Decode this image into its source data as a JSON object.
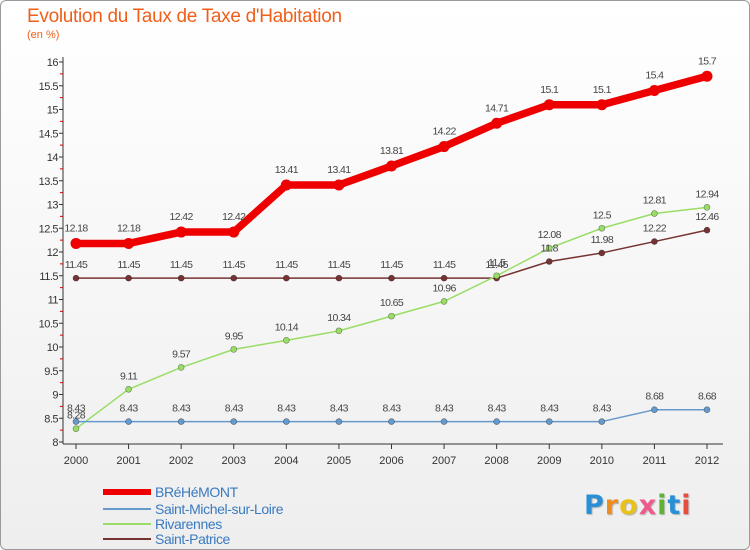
{
  "header": {
    "title": "Evolution du Taux de Taxe d'Habitation",
    "unit": "(en %)"
  },
  "logo": {
    "text": "Proxiti",
    "letters": [
      "P",
      "r",
      "o",
      "x",
      "i",
      "t",
      "i"
    ]
  },
  "chart_data": {
    "type": "line",
    "title": "Evolution du Taux de Taxe d'Habitation",
    "ylabel": "(en %)",
    "xlabel": "",
    "x": [
      "2000",
      "2001",
      "2002",
      "2003",
      "2004",
      "2005",
      "2006",
      "2007",
      "2008",
      "2009",
      "2010",
      "2011",
      "2012"
    ],
    "ylim": [
      8,
      16
    ],
    "yticks": [
      "8",
      "8.5",
      "9",
      "9.5",
      "10",
      "10.5",
      "11",
      "11.5",
      "12",
      "12.5",
      "13",
      "13.5",
      "14",
      "14.5",
      "15",
      "15.5",
      "16"
    ],
    "grid": false,
    "legend": "bottom-left",
    "series": [
      {
        "name": "BRéHéMONT",
        "color": "#ee0000",
        "values": [
          12.18,
          12.18,
          12.42,
          12.42,
          13.41,
          13.41,
          13.81,
          14.22,
          14.71,
          15.1,
          15.1,
          15.4,
          15.7
        ],
        "labels": [
          "12.18",
          "12.18",
          "12.42",
          "12.42",
          "13.41",
          "13.41",
          "13.81",
          "14.22",
          "14.71",
          "15.1",
          "15.1",
          "15.4",
          "15.7"
        ]
      },
      {
        "name": "Saint-Michel-sur-Loire",
        "color": "#6699cc",
        "values": [
          8.43,
          8.43,
          8.43,
          8.43,
          8.43,
          8.43,
          8.43,
          8.43,
          8.43,
          8.43,
          8.43,
          8.68,
          8.68
        ],
        "labels": [
          "8.43",
          "8.43",
          "8.43",
          "8.43",
          "8.43",
          "8.43",
          "8.43",
          "8.43",
          "8.43",
          "8.43",
          "8.43",
          "8.68",
          "8.68"
        ]
      },
      {
        "name": "Rivarennes",
        "color": "#99dd66",
        "values": [
          8.28,
          9.11,
          9.57,
          9.95,
          10.14,
          10.34,
          10.65,
          10.96,
          11.5,
          12.08,
          12.5,
          12.81,
          12.94
        ],
        "labels": [
          "8.28",
          "9.11",
          "9.57",
          "9.95",
          "10.14",
          "10.34",
          "10.65",
          "10.96",
          "11.5",
          "12.08",
          "12.5",
          "12.81",
          "12.94"
        ]
      },
      {
        "name": "Saint-Patrice",
        "color": "#773333",
        "values": [
          11.45,
          11.45,
          11.45,
          11.45,
          11.45,
          11.45,
          11.45,
          11.45,
          11.45,
          11.8,
          11.98,
          12.22,
          12.46
        ],
        "labels": [
          "11.45",
          "11.45",
          "11.45",
          "11.45",
          "11.45",
          "11.45",
          "11.45",
          "11.45",
          "11.45",
          "11.8",
          "11.98",
          "12.22",
          "12.46"
        ]
      }
    ]
  }
}
